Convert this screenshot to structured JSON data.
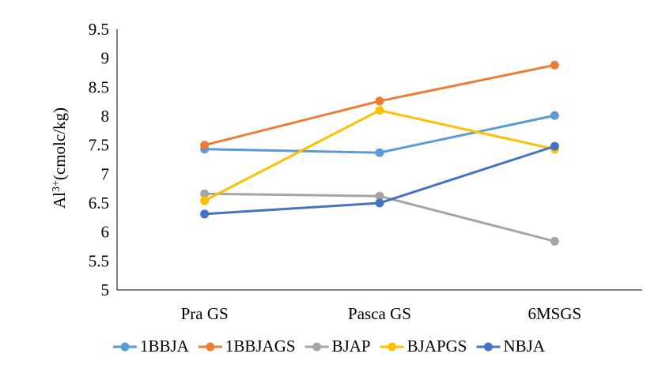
{
  "chart_data": {
    "type": "line",
    "title": "",
    "xlabel": "",
    "ylabel": {
      "base": "Al",
      "superscript": "3+",
      "unit": "(cmolc/kg)"
    },
    "categories": [
      "Pra GS",
      "Pasca GS",
      "6MSGS"
    ],
    "ylim": [
      5,
      9.5
    ],
    "yticks": [
      "5",
      "5.5",
      "6",
      "6.5",
      "7",
      "7.5",
      "8",
      "8.5",
      "9",
      "9.5"
    ],
    "grid": false,
    "legend_position": "bottom",
    "series": [
      {
        "name": "1BBJA",
        "color": "#5B9BD5",
        "values": [
          7.43,
          7.37,
          8.01
        ]
      },
      {
        "name": "1BBJAGS",
        "color": "#ED7D31",
        "values": [
          7.5,
          8.26,
          8.88
        ]
      },
      {
        "name": "BJAP",
        "color": "#A5A5A5",
        "values": [
          6.66,
          6.62,
          5.84
        ]
      },
      {
        "name": "BJAPGS",
        "color": "#FFC000",
        "values": [
          6.54,
          8.1,
          7.43
        ]
      },
      {
        "name": "NBJA",
        "color": "#4472C4",
        "values": [
          6.31,
          6.5,
          7.48
        ]
      }
    ]
  }
}
